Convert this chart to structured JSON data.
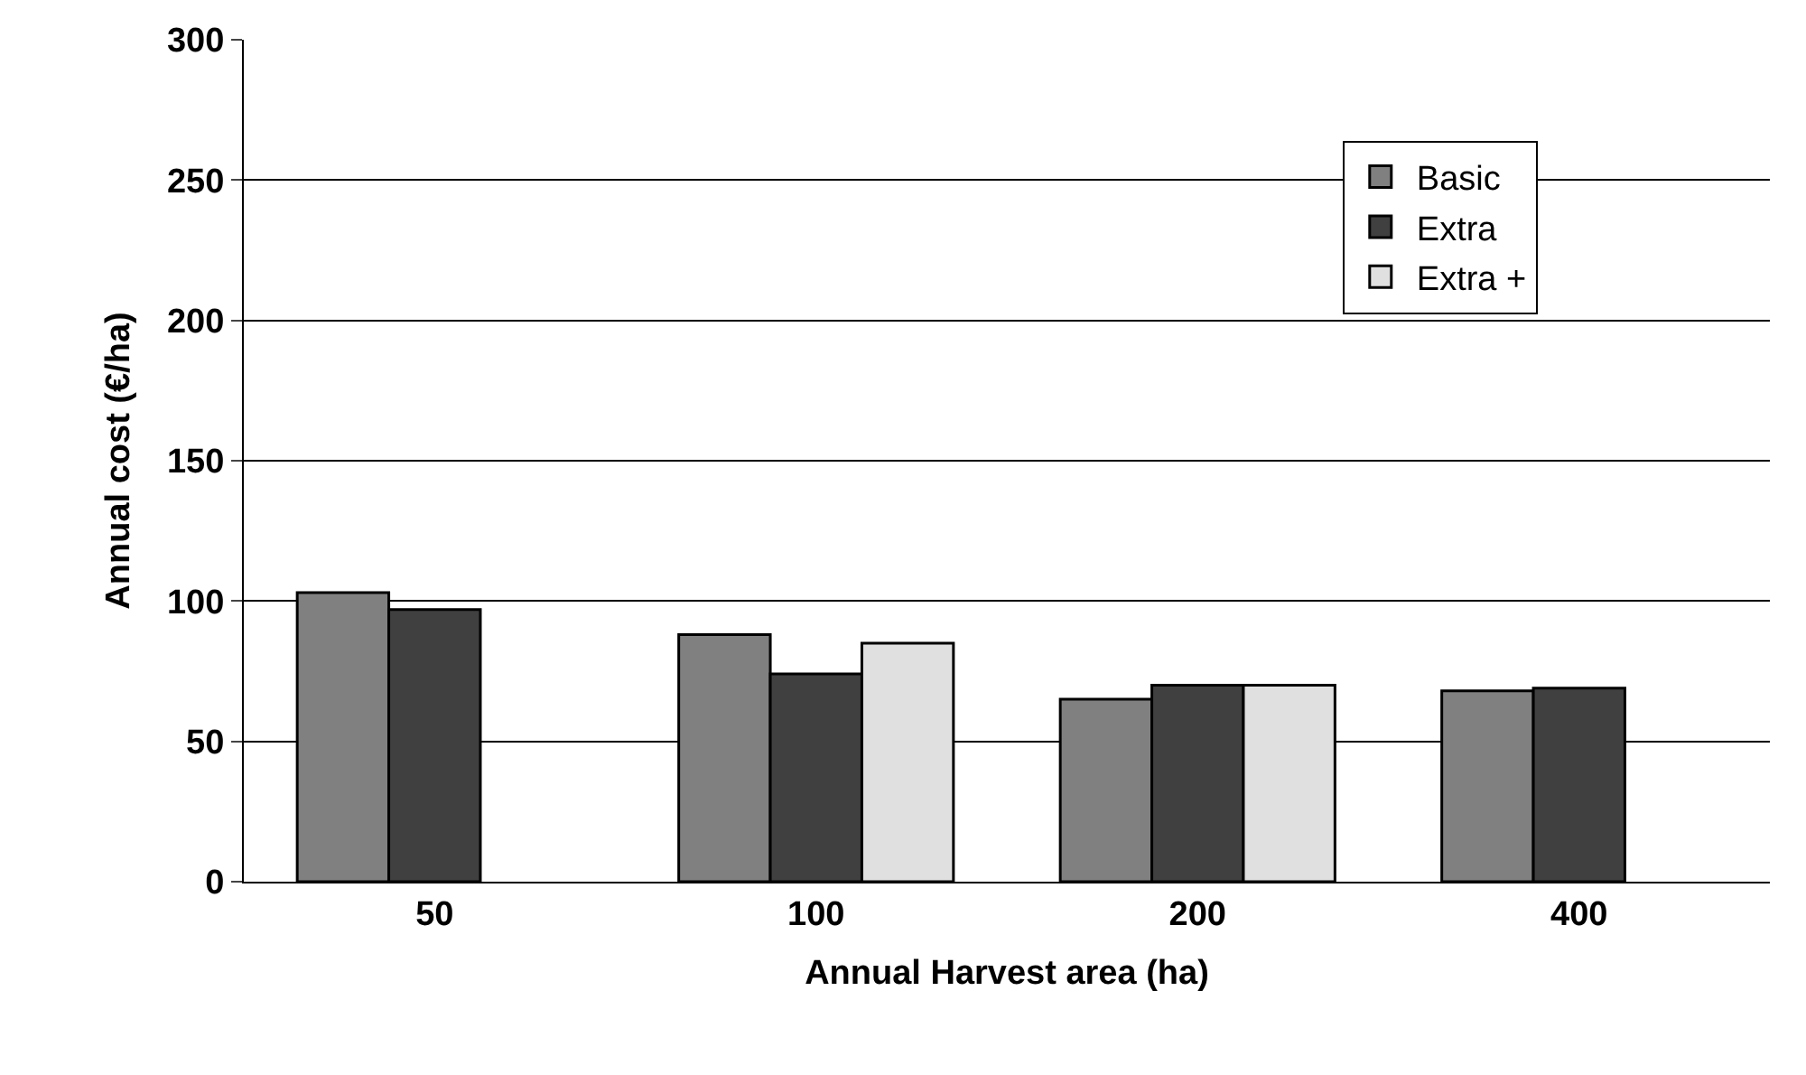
{
  "chart_data": {
    "type": "bar",
    "xlabel": "Annual Harvest area (ha)",
    "ylabel": "Annual cost (€/ha)",
    "categories": [
      "50",
      "100",
      "200",
      "400"
    ],
    "series": [
      {
        "name": "Basic",
        "color": "#808080",
        "values": [
          103,
          88,
          65,
          68
        ]
      },
      {
        "name": "Extra",
        "color": "#404040",
        "values": [
          97,
          74,
          70,
          69
        ]
      },
      {
        "name": "Extra +",
        "color": "#e0e0e0",
        "values": [
          null,
          85,
          70,
          null
        ]
      }
    ],
    "ylim": [
      0,
      300
    ],
    "yticks": [
      0,
      50,
      100,
      150,
      200,
      250,
      300
    ],
    "grid": "y",
    "legend": "top right"
  }
}
